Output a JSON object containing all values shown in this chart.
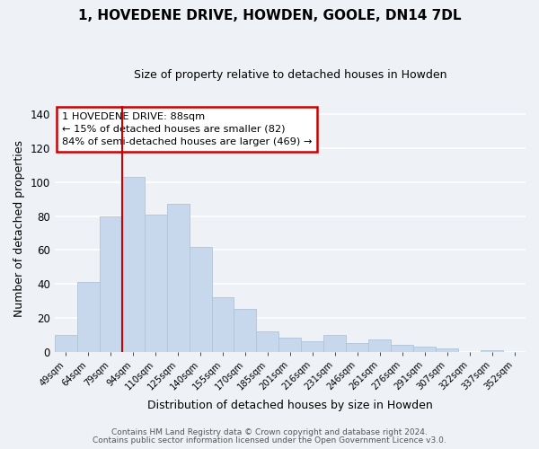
{
  "title": "1, HOVEDENE DRIVE, HOWDEN, GOOLE, DN14 7DL",
  "subtitle": "Size of property relative to detached houses in Howden",
  "xlabel": "Distribution of detached houses by size in Howden",
  "ylabel": "Number of detached properties",
  "bar_color": "#c8d8ec",
  "bar_edge_color": "#b0c4d8",
  "categories": [
    "49sqm",
    "64sqm",
    "79sqm",
    "94sqm",
    "110sqm",
    "125sqm",
    "140sqm",
    "155sqm",
    "170sqm",
    "185sqm",
    "201sqm",
    "216sqm",
    "231sqm",
    "246sqm",
    "261sqm",
    "276sqm",
    "291sqm",
    "307sqm",
    "322sqm",
    "337sqm",
    "352sqm"
  ],
  "values": [
    10,
    41,
    80,
    103,
    81,
    87,
    62,
    32,
    25,
    12,
    8,
    6,
    10,
    5,
    7,
    4,
    3,
    2,
    0,
    1,
    0
  ],
  "ylim": [
    0,
    145
  ],
  "yticks": [
    0,
    20,
    40,
    60,
    80,
    100,
    120,
    140
  ],
  "property_line_x": 2.5,
  "property_line_color": "#cc0000",
  "annotation_title": "1 HOVEDENE DRIVE: 88sqm",
  "annotation_line1": "← 15% of detached houses are smaller (82)",
  "annotation_line2": "84% of semi-detached houses are larger (469) →",
  "annotation_box_color": "#ffffff",
  "annotation_box_edge": "#cc0000",
  "footer1": "Contains HM Land Registry data © Crown copyright and database right 2024.",
  "footer2": "Contains public sector information licensed under the Open Government Licence v3.0.",
  "background_color": "#eef2f7",
  "plot_bg_color": "#eef2f7",
  "grid_color": "#ffffff"
}
